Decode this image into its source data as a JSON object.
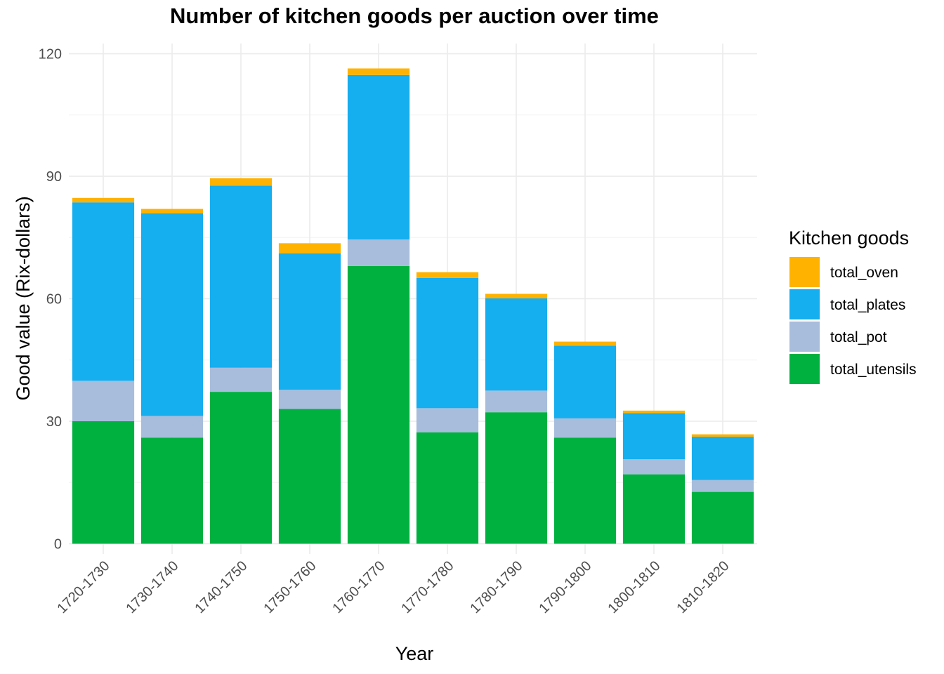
{
  "chart_data": {
    "type": "bar",
    "stacked": true,
    "title": "Number of kitchen goods per auction over time",
    "xlabel": "Year",
    "ylabel": "Good value (Rix-dollars)",
    "ylim": [
      -2.5,
      122.5
    ],
    "yticks": [
      0,
      30,
      60,
      90,
      120
    ],
    "grid": true,
    "legend": {
      "title": "Kitchen goods",
      "placement": "right"
    },
    "categories": [
      "1720-1730",
      "1730-1740",
      "1740-1750",
      "1750-1760",
      "1760-1770",
      "1770-1780",
      "1780-1790",
      "1790-1800",
      "1800-1810",
      "1810-1820"
    ],
    "series": [
      {
        "name": "total_utensils",
        "color": "#00b140",
        "values": [
          30,
          26,
          37.2,
          33,
          68,
          27.3,
          32.2,
          26,
          17,
          12.7
        ]
      },
      {
        "name": "total_pot",
        "color": "#a8bddc",
        "values": [
          9.9,
          5.3,
          5.9,
          4.7,
          6.5,
          5.9,
          5.3,
          4.7,
          3.7,
          2.9
        ]
      },
      {
        "name": "total_plates",
        "color": "#15aeef",
        "values": [
          43.7,
          49.6,
          44.6,
          33.4,
          40.3,
          31.9,
          22.6,
          17.8,
          11.3,
          10.6
        ]
      },
      {
        "name": "total_oven",
        "color": "#ffb200",
        "values": [
          1.1,
          1.1,
          1.8,
          2.5,
          1.6,
          1.4,
          1.1,
          1.0,
          0.6,
          0.6
        ]
      }
    ]
  }
}
